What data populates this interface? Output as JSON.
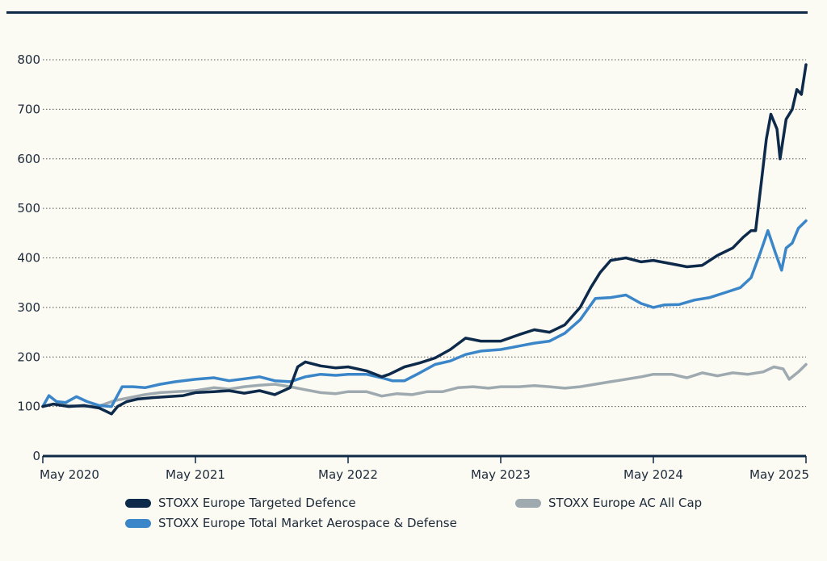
{
  "chart_data": {
    "type": "line",
    "title": "",
    "xlabel": "",
    "ylabel": "",
    "ylim": [
      0,
      800
    ],
    "yticks": [
      0,
      100,
      200,
      300,
      400,
      500,
      600,
      700,
      800
    ],
    "xlim": [
      2020.33,
      2025.33
    ],
    "xticks": [
      {
        "value": 2020.33,
        "label": "May 2020"
      },
      {
        "value": 2021.33,
        "label": "May 2021"
      },
      {
        "value": 2022.33,
        "label": "May 2022"
      },
      {
        "value": 2023.33,
        "label": "May 2023"
      },
      {
        "value": 2024.33,
        "label": "May 2024"
      },
      {
        "value": 2025.33,
        "label": "May 2025"
      }
    ],
    "grid": "horizontal-dotted",
    "legend_position": "bottom",
    "series": [
      {
        "name": "STOXX Europe AC All Cap",
        "color": "#9eaab0",
        "x": [
          2020.33,
          2020.4,
          2020.5,
          2020.6,
          2020.7,
          2020.8,
          2020.9,
          2021.0,
          2021.1,
          2021.2,
          2021.33,
          2021.45,
          2021.55,
          2021.65,
          2021.75,
          2021.85,
          2021.95,
          2022.05,
          2022.15,
          2022.25,
          2022.33,
          2022.45,
          2022.55,
          2022.65,
          2022.75,
          2022.85,
          2022.95,
          2023.05,
          2023.15,
          2023.25,
          2023.33,
          2023.45,
          2023.55,
          2023.65,
          2023.75,
          2023.85,
          2023.95,
          2024.05,
          2024.15,
          2024.25,
          2024.33,
          2024.45,
          2024.55,
          2024.65,
          2024.75,
          2024.85,
          2024.95,
          2025.05,
          2025.12,
          2025.18,
          2025.22,
          2025.28,
          2025.33
        ],
        "y": [
          100,
          105,
          102,
          100,
          101,
          112,
          118,
          124,
          128,
          130,
          132,
          138,
          135,
          140,
          143,
          145,
          140,
          134,
          128,
          126,
          130,
          130,
          121,
          126,
          124,
          130,
          130,
          138,
          140,
          137,
          140,
          140,
          142,
          140,
          137,
          140,
          145,
          150,
          155,
          160,
          165,
          165,
          158,
          168,
          162,
          168,
          165,
          170,
          180,
          176,
          155,
          170,
          185
        ]
      },
      {
        "name": "STOXX Europe Total Market Aerospace & Defense",
        "color": "#3a86c8",
        "x": [
          2020.33,
          2020.37,
          2020.42,
          2020.48,
          2020.55,
          2020.62,
          2020.7,
          2020.78,
          2020.85,
          2020.92,
          2021.0,
          2021.1,
          2021.2,
          2021.33,
          2021.45,
          2021.55,
          2021.65,
          2021.75,
          2021.85,
          2021.95,
          2022.05,
          2022.15,
          2022.25,
          2022.33,
          2022.45,
          2022.55,
          2022.62,
          2022.7,
          2022.8,
          2022.9,
          2023.0,
          2023.1,
          2023.2,
          2023.33,
          2023.45,
          2023.55,
          2023.65,
          2023.75,
          2023.85,
          2023.95,
          2024.05,
          2024.15,
          2024.25,
          2024.33,
          2024.4,
          2024.5,
          2024.6,
          2024.7,
          2024.8,
          2024.9,
          2024.97,
          2025.03,
          2025.08,
          2025.13,
          2025.17,
          2025.2,
          2025.24,
          2025.28,
          2025.33
        ],
        "y": [
          100,
          122,
          110,
          108,
          120,
          110,
          102,
          100,
          140,
          140,
          138,
          145,
          150,
          155,
          158,
          152,
          156,
          160,
          152,
          150,
          160,
          165,
          163,
          165,
          165,
          158,
          152,
          152,
          168,
          185,
          192,
          205,
          212,
          215,
          222,
          228,
          232,
          248,
          275,
          318,
          320,
          325,
          308,
          300,
          305,
          306,
          315,
          320,
          330,
          340,
          360,
          410,
          455,
          410,
          375,
          420,
          430,
          460,
          475
        ]
      },
      {
        "name": "STOXX Europe Targeted Defence",
        "color": "#0d2a4a",
        "x": [
          2020.33,
          2020.4,
          2020.5,
          2020.6,
          2020.7,
          2020.78,
          2020.82,
          2020.88,
          2020.95,
          2021.05,
          2021.15,
          2021.25,
          2021.33,
          2021.45,
          2021.55,
          2021.65,
          2021.75,
          2021.85,
          2021.95,
          2022.0,
          2022.05,
          2022.15,
          2022.25,
          2022.33,
          2022.45,
          2022.55,
          2022.6,
          2022.7,
          2022.8,
          2022.9,
          2023.0,
          2023.1,
          2023.2,
          2023.33,
          2023.45,
          2023.55,
          2023.65,
          2023.75,
          2023.85,
          2023.92,
          2023.98,
          2024.05,
          2024.15,
          2024.25,
          2024.33,
          2024.45,
          2024.55,
          2024.65,
          2024.75,
          2024.85,
          2024.92,
          2024.97,
          2025.0,
          2025.04,
          2025.07,
          2025.1,
          2025.14,
          2025.16,
          2025.2,
          2025.24,
          2025.27,
          2025.3,
          2025.33
        ],
        "y": [
          100,
          105,
          100,
          102,
          97,
          85,
          100,
          110,
          115,
          118,
          120,
          122,
          128,
          130,
          132,
          127,
          132,
          124,
          138,
          180,
          190,
          182,
          178,
          180,
          172,
          160,
          165,
          180,
          188,
          198,
          215,
          238,
          232,
          232,
          245,
          255,
          250,
          265,
          300,
          340,
          370,
          395,
          400,
          392,
          395,
          388,
          382,
          385,
          405,
          420,
          442,
          455,
          455,
          560,
          640,
          690,
          660,
          600,
          680,
          700,
          740,
          730,
          790
        ]
      }
    ]
  },
  "legend": [
    {
      "label": "STOXX Europe Targeted Defence",
      "color": "#0d2a4a"
    },
    {
      "label": "STOXX Europe AC All Cap",
      "color": "#9eaab0"
    },
    {
      "label": "STOXX Europe Total Market Aerospace & Defense",
      "color": "#3a86c8"
    }
  ]
}
